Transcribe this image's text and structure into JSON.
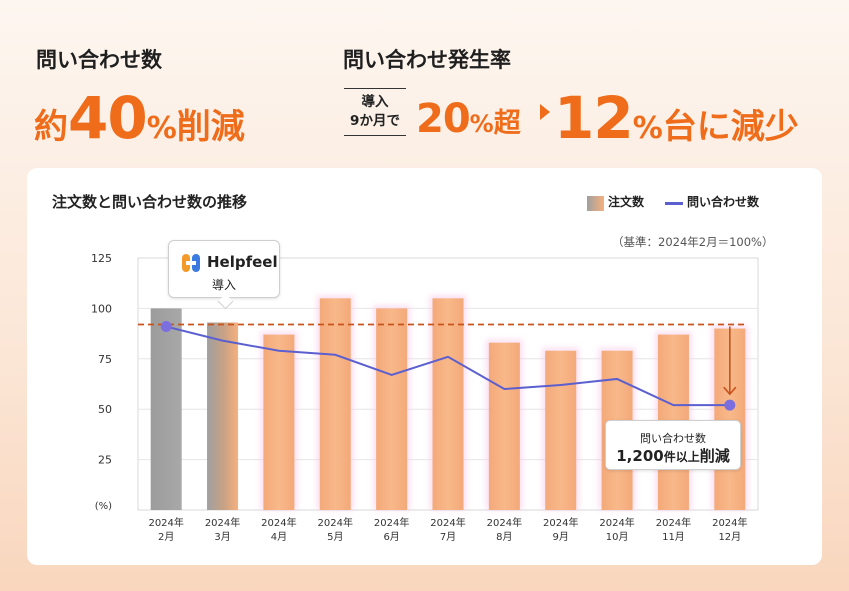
{
  "headline_left": {
    "label": "問い合わせ数",
    "prefix": "約",
    "number": "40",
    "unit": "%",
    "suffix": "削減"
  },
  "headline_right": {
    "label": "問い合わせ発生率",
    "intro_line1": "導入",
    "intro_line2": "9か月で",
    "from_number": "20",
    "from_unit": "%",
    "from_suffix": "超",
    "to_number": "12",
    "to_unit": "%",
    "to_suffix": "台に減少"
  },
  "colors": {
    "accent": "#ef6c1a",
    "line": "#5b5fcf",
    "bar_orange": "#f6b07e",
    "bar_gray": "#a0a0a0",
    "dashed": "#c9531c"
  },
  "callout_intro": {
    "brand": "Helpfeel",
    "text": "導入"
  },
  "callout_reduction": {
    "line1": "問い合わせ数",
    "amount": "1,200",
    "amount_unit": "件以上",
    "action": "削減"
  },
  "chart_data": {
    "type": "bar",
    "title": "注文数と問い合わせ数の推移",
    "note": "（基準：2024年2月＝100%）",
    "ylabel": "(%)",
    "ylim": [
      0,
      125
    ],
    "yticks": [
      25,
      50,
      75,
      100,
      125
    ],
    "categories": [
      [
        "2024年",
        "2月"
      ],
      [
        "2024年",
        "3月"
      ],
      [
        "2024年",
        "4月"
      ],
      [
        "2024年",
        "5月"
      ],
      [
        "2024年",
        "6月"
      ],
      [
        "2024年",
        "7月"
      ],
      [
        "2024年",
        "8月"
      ],
      [
        "2024年",
        "9月"
      ],
      [
        "2024年",
        "10月"
      ],
      [
        "2024年",
        "11月"
      ],
      [
        "2024年",
        "12月"
      ]
    ],
    "series": [
      {
        "name": "注文数",
        "kind": "bar",
        "values": [
          100,
          93,
          87,
          105,
          100,
          105,
          83,
          79,
          79,
          87,
          90
        ]
      },
      {
        "name": "問い合わせ数",
        "kind": "line",
        "values": [
          91,
          84,
          79,
          77,
          67,
          76,
          60,
          62,
          65,
          52,
          52
        ]
      }
    ],
    "reference_line": 92
  }
}
